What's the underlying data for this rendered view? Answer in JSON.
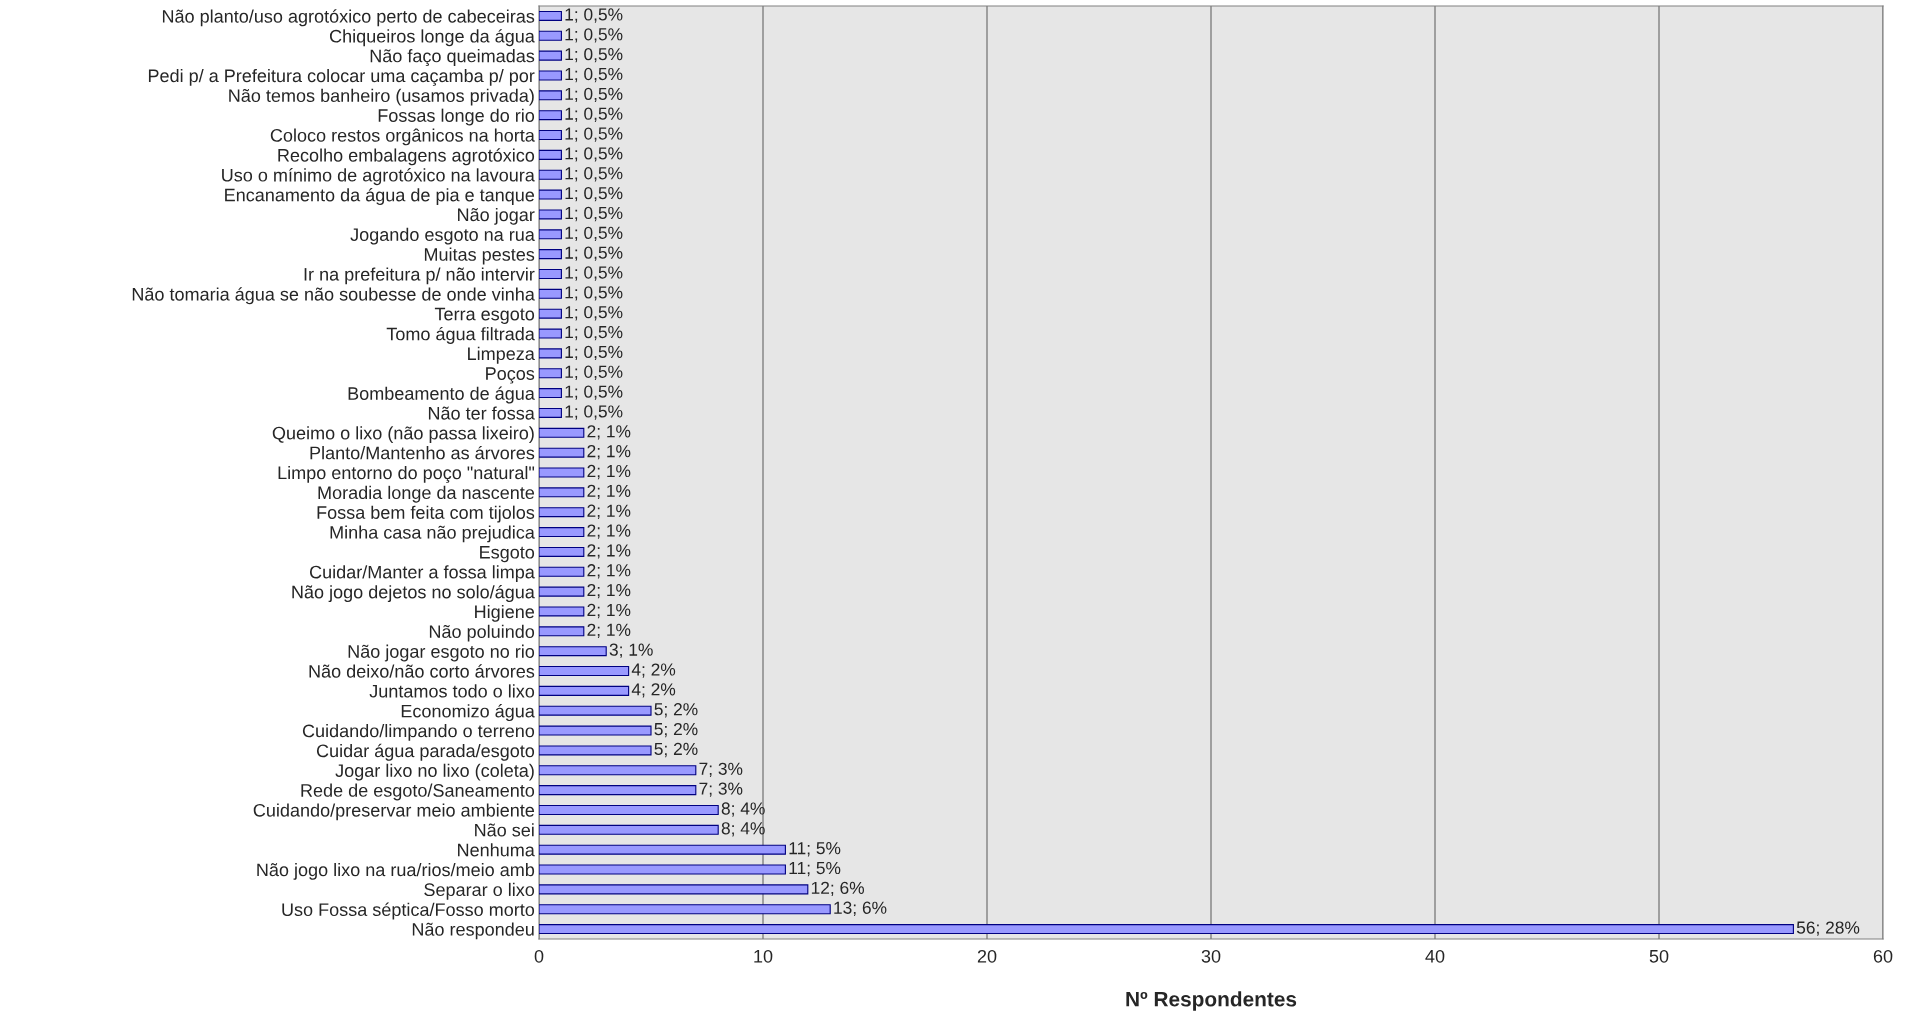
{
  "chart_data": {
    "type": "bar",
    "orientation": "horizontal",
    "xlabel": "Nº Respondentes",
    "categories": [
      "Não planto/uso agrotóxico perto de cabeceiras",
      "Chiqueiros longe da água",
      "Não faço queimadas",
      "Pedi p/ a Prefeitura colocar uma caçamba p/ por",
      "Não temos banheiro (usamos privada)",
      "Fossas longe do rio",
      "Coloco restos orgânicos na horta",
      "Recolho embalagens agrotóxico",
      "Uso o mínimo de agrotóxico na lavoura",
      "Encanamento da água de pia e tanque",
      "Não jogar",
      "Jogando esgoto na rua",
      "Muitas pestes",
      "Ir na prefeitura p/ não intervir",
      "Não tomaria água se não soubesse de onde vinha",
      "Terra esgoto",
      "Tomo água filtrada",
      "Limpeza",
      "Poços",
      "Bombeamento de água",
      "Não ter fossa",
      "Queimo o lixo (não passa lixeiro)",
      "Planto/Mantenho as árvores",
      "Limpo entorno do poço \"natural\"",
      "Moradia longe da nascente",
      "Fossa bem feita com tijolos",
      "Minha casa não prejudica",
      "Esgoto",
      "Cuidar/Manter a fossa limpa",
      "Não jogo dejetos no solo/água",
      "Higiene",
      "Não poluindo",
      "Não jogar esgoto no rio",
      "Não deixo/não corto árvores",
      "Juntamos todo o lixo",
      "Economizo água",
      "Cuidando/limpando o terreno",
      "Cuidar água parada/esgoto",
      "Jogar lixo no lixo (coleta)",
      "Rede de esgoto/Saneamento",
      "Cuidando/preservar meio ambiente",
      "Não sei",
      "Nenhuma",
      "Não jogo lixo na rua/rios/meio amb",
      "Separar o lixo",
      "Uso Fossa séptica/Fosso morto",
      "Não respondeu"
    ],
    "values": [
      1,
      1,
      1,
      1,
      1,
      1,
      1,
      1,
      1,
      1,
      1,
      1,
      1,
      1,
      1,
      1,
      1,
      1,
      1,
      1,
      1,
      2,
      2,
      2,
      2,
      2,
      2,
      2,
      2,
      2,
      2,
      2,
      3,
      4,
      4,
      5,
      5,
      5,
      7,
      7,
      8,
      8,
      11,
      11,
      12,
      13,
      56
    ],
    "value_labels": [
      "1; 0,5%",
      "1; 0,5%",
      "1; 0,5%",
      "1; 0,5%",
      "1; 0,5%",
      "1; 0,5%",
      "1; 0,5%",
      "1; 0,5%",
      "1; 0,5%",
      "1; 0,5%",
      "1; 0,5%",
      "1; 0,5%",
      "1; 0,5%",
      "1; 0,5%",
      "1; 0,5%",
      "1; 0,5%",
      "1; 0,5%",
      "1; 0,5%",
      "1; 0,5%",
      "1; 0,5%",
      "1; 0,5%",
      "2; 1%",
      "2; 1%",
      "2; 1%",
      "2; 1%",
      "2; 1%",
      "2; 1%",
      "2; 1%",
      "2; 1%",
      "2; 1%",
      "2; 1%",
      "2; 1%",
      "3; 1%",
      "4; 2%",
      "4; 2%",
      "5; 2%",
      "5; 2%",
      "5; 2%",
      "7; 3%",
      "7; 3%",
      "8; 4%",
      "8; 4%",
      "11; 5%",
      "11; 5%",
      "12; 6%",
      "13; 6%",
      "56; 28%"
    ],
    "color": "#9999ff",
    "xlim": [
      0,
      60
    ],
    "xticks": [
      0,
      10,
      20,
      30,
      40,
      50,
      60
    ],
    "grid": "x",
    "legend": false
  }
}
